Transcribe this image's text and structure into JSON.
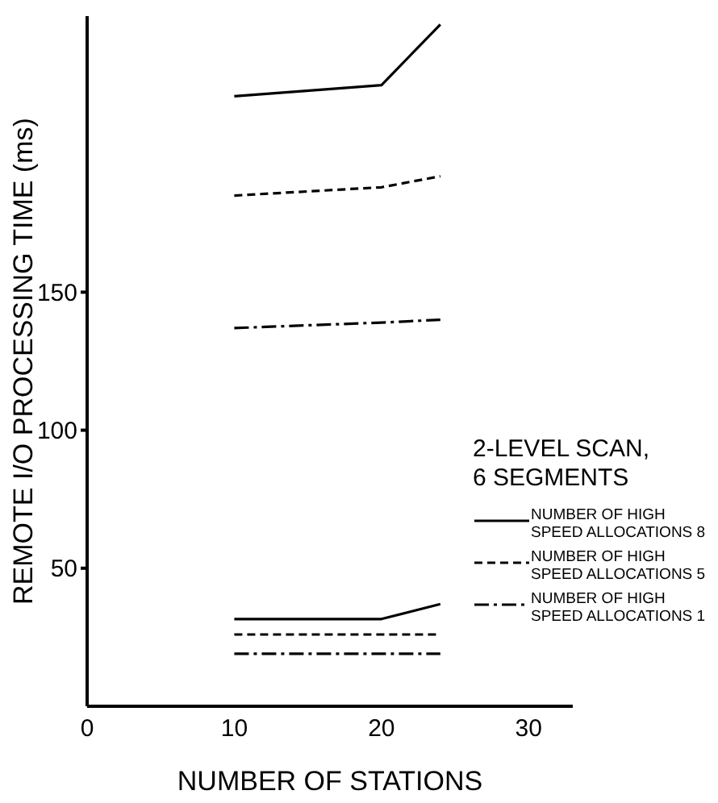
{
  "chart_data": {
    "type": "line",
    "xlabel": "NUMBER OF STATIONS",
    "ylabel": "REMOTE I/O PROCESSING TIME (ms)",
    "legend_title": "2-LEVEL SCAN, 6 SEGMENTS",
    "x": [
      10,
      20,
      24
    ],
    "series": [
      {
        "name": "NUMBER OF HIGH SPEED ALLOCATIONS 8",
        "color": "#000000",
        "line_style": "solid",
        "values": [
          221,
          225,
          247
        ]
      },
      {
        "name": "NUMBER OF HIGH SPEED ALLOCATIONS 5",
        "color": "#000000",
        "line_style": "dashed",
        "values": [
          185,
          188,
          192
        ]
      },
      {
        "name": "NUMBER OF HIGH SPEED ALLOCATIONS 1",
        "color": "#000000",
        "line_style": "dashdot",
        "values": [
          137,
          139,
          140
        ]
      },
      {
        "color": "#000000",
        "line_style": "solid",
        "values": [
          31.6,
          31.6,
          37
        ]
      },
      {
        "color": "#000000",
        "line_style": "dashed",
        "values": [
          26,
          26,
          26
        ]
      },
      {
        "color": "#000000",
        "line_style": "dashdot",
        "values": [
          19,
          19,
          19
        ]
      }
    ],
    "xlim": [
      0,
      33
    ],
    "xticks": [
      0,
      10,
      20,
      30
    ],
    "ylim": [
      0,
      250
    ],
    "yticks": [
      50,
      100,
      150
    ],
    "legend": "right",
    "marker": "none",
    "grid": false
  }
}
